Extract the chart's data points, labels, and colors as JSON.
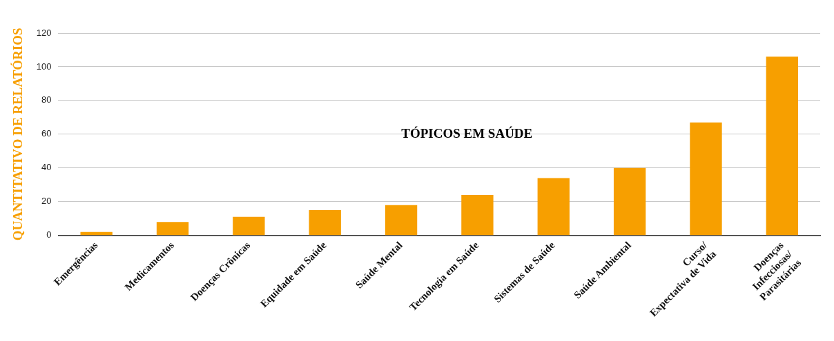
{
  "chart_data": {
    "type": "bar",
    "title": "TÓPICOS EM SAÚDE",
    "ylabel": "QUANTITATIVO DE RELATÓRIOS",
    "categories": [
      "Emergências",
      "Medicamentos",
      "Doenças Crônicas",
      "Equidade em Saúde",
      "Saúde Mental",
      "Tecnologia em Saúde",
      "Sistemas de Saúde",
      "Saúde Ambiental",
      "Curso/\nExpectativa de Vida",
      "Doenças\nInfecciosas/\nParasitárias"
    ],
    "values": [
      2,
      8,
      11,
      15,
      18,
      24,
      34,
      40,
      67,
      106
    ],
    "color": "#f79f00",
    "ylim": [
      0,
      120
    ],
    "yticks": [
      0,
      20,
      40,
      60,
      80,
      100,
      120
    ],
    "grid": "y",
    "legend": false
  }
}
